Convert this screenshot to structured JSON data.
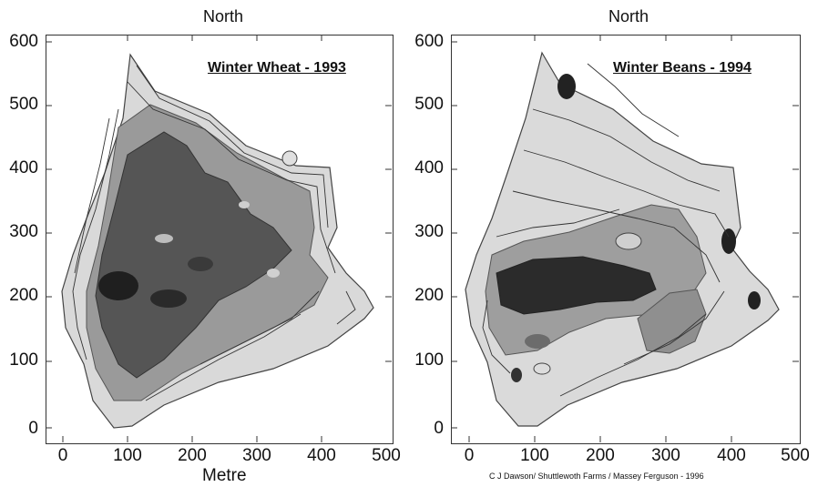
{
  "axis": {
    "north_label": "North",
    "y_ticks": [
      "600",
      "500",
      "400",
      "300",
      "200",
      "100",
      "0"
    ],
    "x_ticks": [
      "0",
      "100",
      "200",
      "300",
      "400",
      "500"
    ],
    "x_axis_label": "Metre"
  },
  "left_map": {
    "title": "Winter Wheat - 1993"
  },
  "right_map": {
    "title": "Winter Beans - 1994"
  },
  "credit": "C J Dawson/ Shuttlewoth Farms / Massey Ferguson - 1996"
}
